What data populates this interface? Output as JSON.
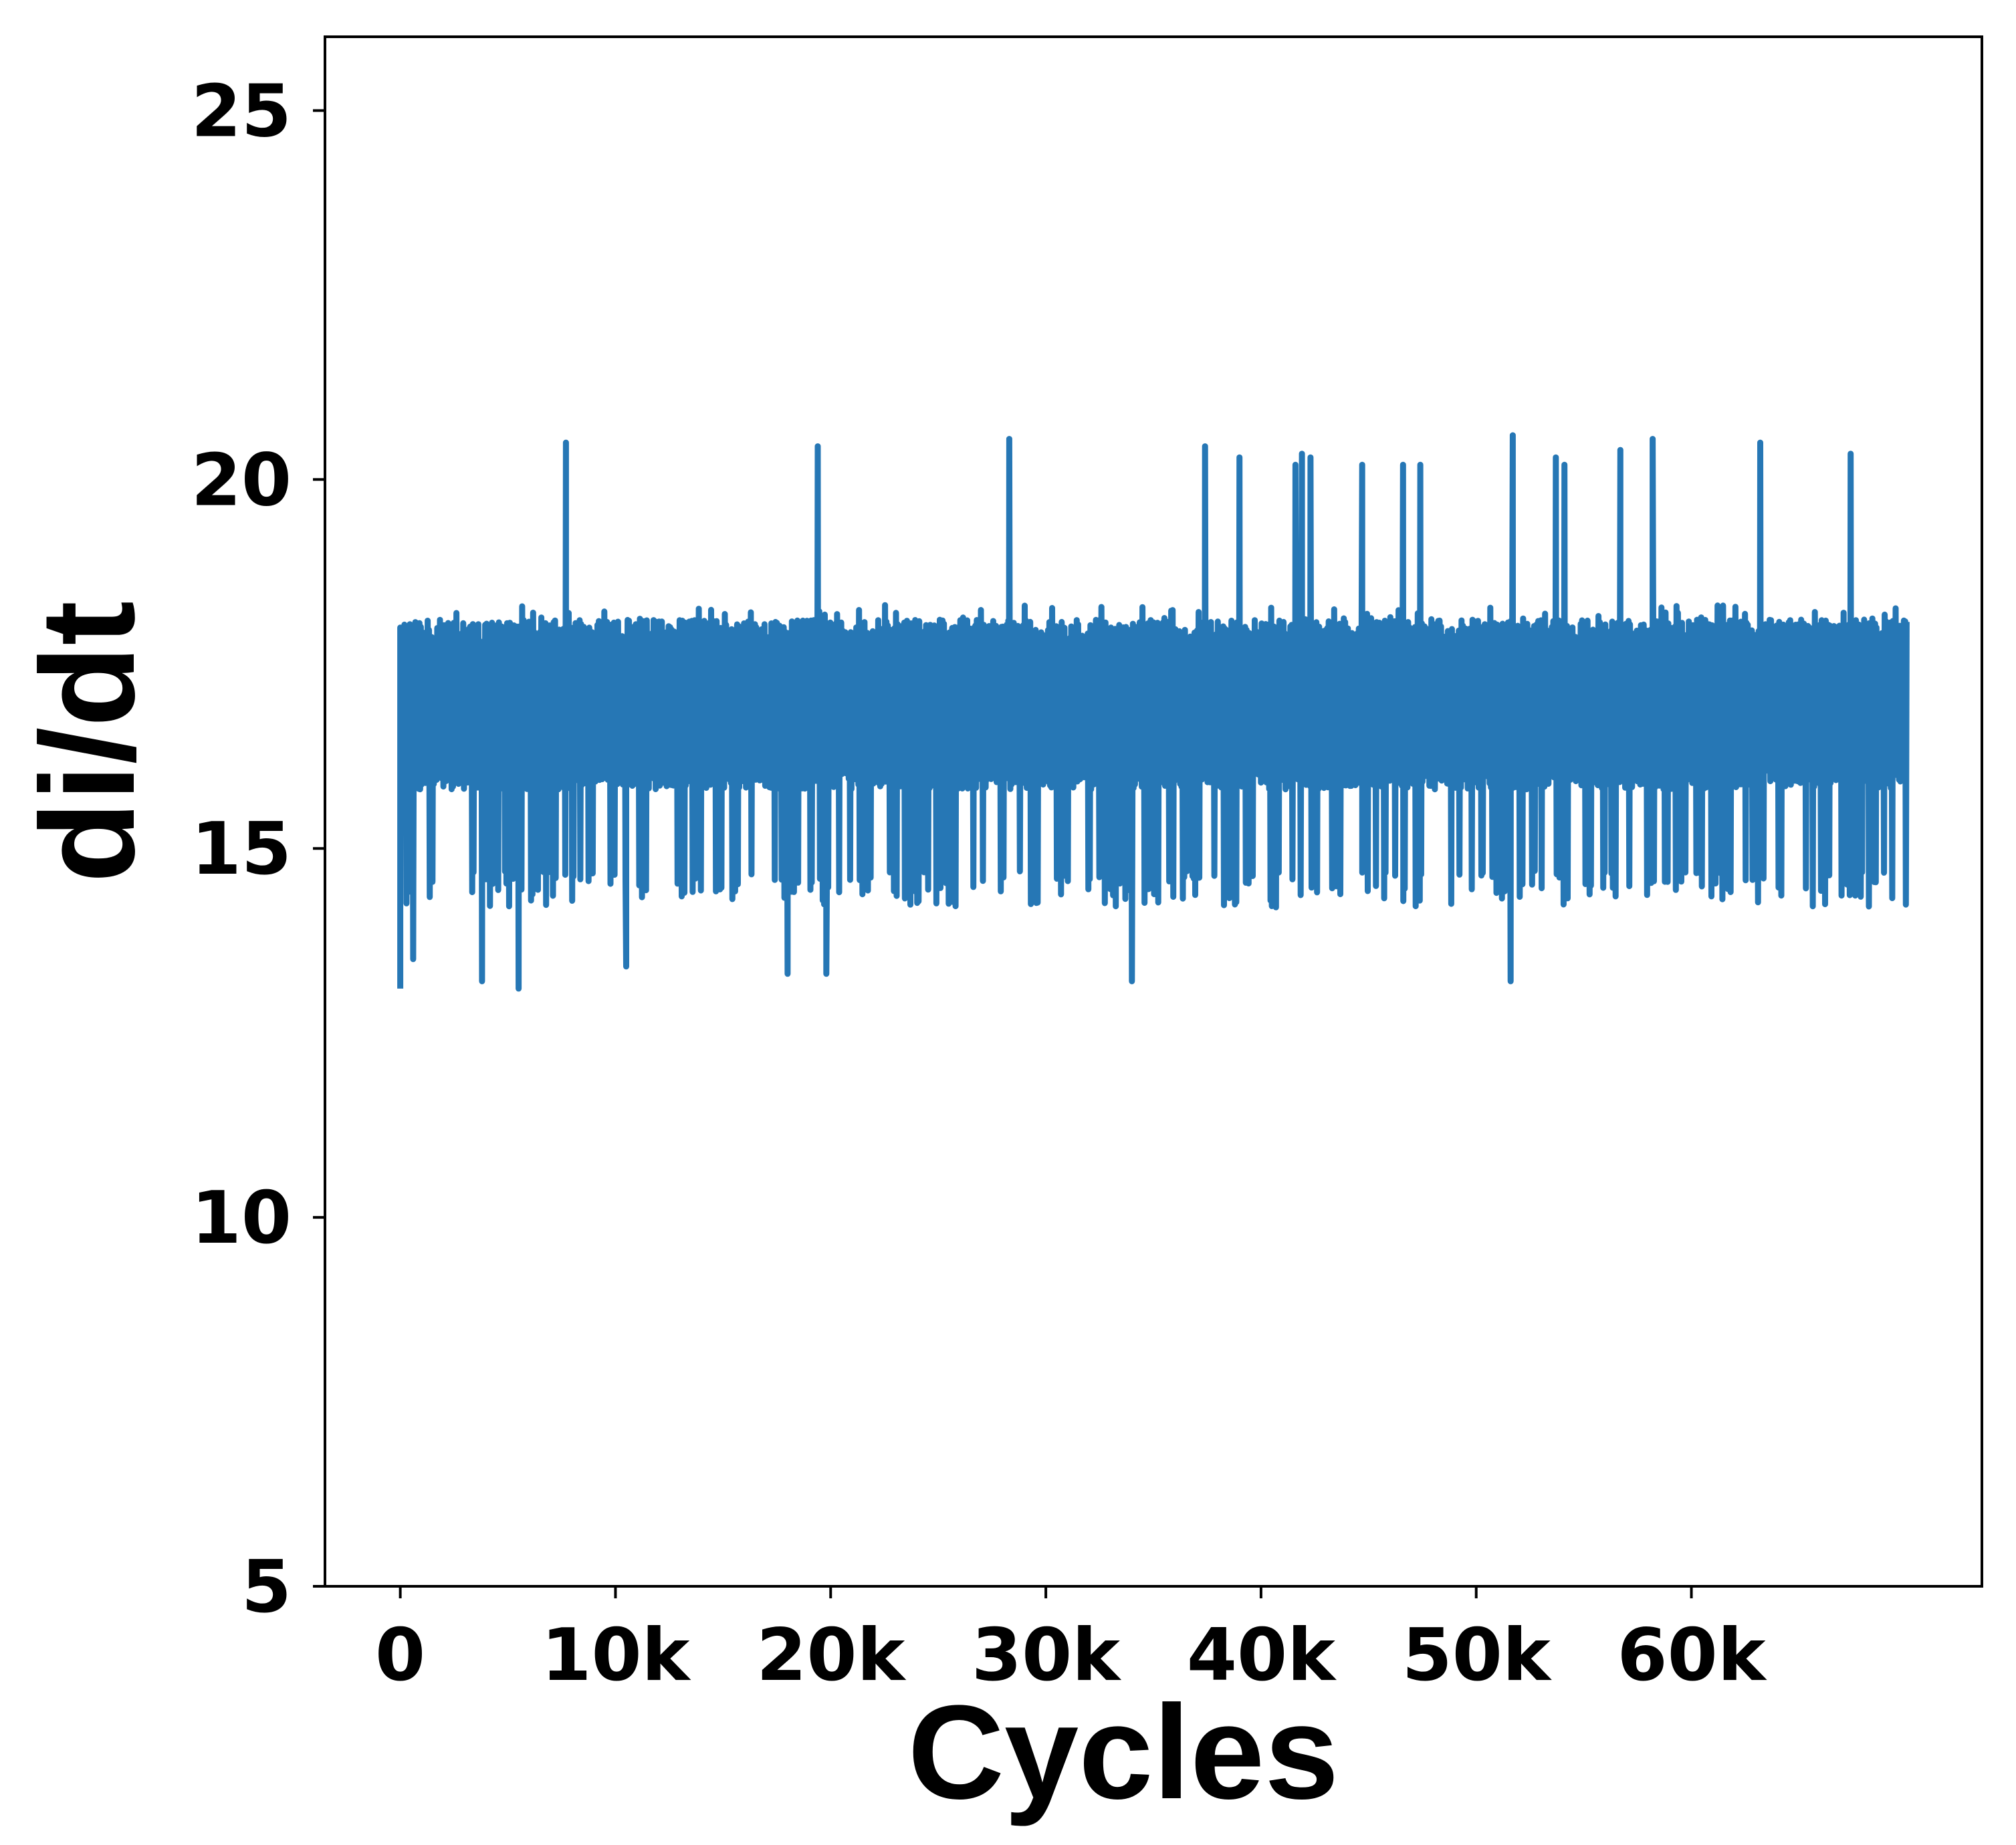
{
  "chart_data": {
    "type": "line",
    "title": "",
    "xlabel": "Cycles",
    "ylabel": "di/dt",
    "xlim": [
      -3500,
      73500
    ],
    "ylim": [
      5,
      26
    ],
    "x_ticks": [
      {
        "value": 0,
        "label": "0"
      },
      {
        "value": 10000,
        "label": "10k"
      },
      {
        "value": 20000,
        "label": "20k"
      },
      {
        "value": 30000,
        "label": "30k"
      },
      {
        "value": 40000,
        "label": "40k"
      },
      {
        "value": 50000,
        "label": "50k"
      },
      {
        "value": 60000,
        "label": "60k"
      }
    ],
    "y_ticks": [
      {
        "value": 5,
        "label": "5"
      },
      {
        "value": 10,
        "label": "10"
      },
      {
        "value": 15,
        "label": "15"
      },
      {
        "value": 20,
        "label": "20"
      },
      {
        "value": 25,
        "label": "25"
      }
    ],
    "grid": false,
    "legend": "none",
    "series": [
      {
        "color": "#2677b5",
        "x_start": 0,
        "x_end": 70000,
        "band_low": 15.8,
        "band_high": 18.1,
        "spikes_high": [
          {
            "x": 7700,
            "y": 20.5
          },
          {
            "x": 19400,
            "y": 20.45
          },
          {
            "x": 28300,
            "y": 20.55
          },
          {
            "x": 37400,
            "y": 20.45
          },
          {
            "x": 39000,
            "y": 20.3
          },
          {
            "x": 41600,
            "y": 20.2
          },
          {
            "x": 41900,
            "y": 20.35
          },
          {
            "x": 42300,
            "y": 20.3
          },
          {
            "x": 44700,
            "y": 20.2
          },
          {
            "x": 46600,
            "y": 20.2
          },
          {
            "x": 47400,
            "y": 20.2
          },
          {
            "x": 51700,
            "y": 20.6
          },
          {
            "x": 53700,
            "y": 20.3
          },
          {
            "x": 54100,
            "y": 20.2
          },
          {
            "x": 56700,
            "y": 20.4
          },
          {
            "x": 58200,
            "y": 20.55
          },
          {
            "x": 63200,
            "y": 20.5
          },
          {
            "x": 67400,
            "y": 20.35
          }
        ],
        "spikes_low": [
          {
            "x": 0,
            "y": 13.1
          },
          {
            "x": 600,
            "y": 13.5
          },
          {
            "x": 3800,
            "y": 13.2
          },
          {
            "x": 5500,
            "y": 13.1
          },
          {
            "x": 10500,
            "y": 13.4
          },
          {
            "x": 18000,
            "y": 13.3
          },
          {
            "x": 19800,
            "y": 13.3
          },
          {
            "x": 34000,
            "y": 13.2
          },
          {
            "x": 51600,
            "y": 13.2
          }
        ]
      }
    ]
  }
}
